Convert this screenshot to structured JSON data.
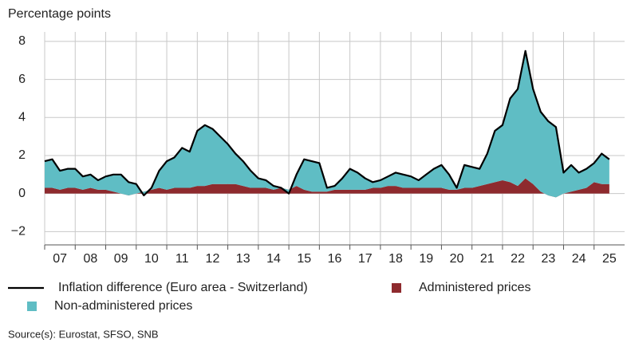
{
  "chart_data": {
    "type": "stacked-area-line",
    "y_label": "Percentage points",
    "source": "Source(s): Eurostat, SFSO, SNB",
    "x": [
      2007.0,
      2007.25,
      2007.5,
      2007.75,
      2008.0,
      2008.25,
      2008.5,
      2008.75,
      2009.0,
      2009.25,
      2009.5,
      2009.75,
      2010.0,
      2010.25,
      2010.5,
      2010.75,
      2011.0,
      2011.25,
      2011.5,
      2011.75,
      2012.0,
      2012.25,
      2012.5,
      2012.75,
      2013.0,
      2013.25,
      2013.5,
      2013.75,
      2014.0,
      2014.25,
      2014.5,
      2014.75,
      2015.0,
      2015.25,
      2015.5,
      2015.75,
      2016.0,
      2016.25,
      2016.5,
      2016.75,
      2017.0,
      2017.25,
      2017.5,
      2017.75,
      2018.0,
      2018.25,
      2018.5,
      2018.75,
      2019.0,
      2019.25,
      2019.5,
      2019.75,
      2020.0,
      2020.25,
      2020.5,
      2020.75,
      2021.0,
      2021.25,
      2021.5,
      2021.75,
      2022.0,
      2022.25,
      2022.5,
      2022.75,
      2023.0,
      2023.25,
      2023.5,
      2023.75,
      2024.0,
      2024.25,
      2024.5,
      2024.75,
      2025.0,
      2025.25,
      2025.5
    ],
    "series": [
      {
        "name": "Inflation difference (Euro area - Switzerland)",
        "color": "#000000",
        "kind": "line",
        "values": [
          1.7,
          1.8,
          1.2,
          1.3,
          1.3,
          0.9,
          1.0,
          0.7,
          0.9,
          1.0,
          1.0,
          0.6,
          0.5,
          -0.1,
          0.3,
          1.2,
          1.7,
          1.9,
          2.4,
          2.2,
          3.3,
          3.6,
          3.4,
          3.0,
          2.6,
          2.1,
          1.7,
          1.2,
          0.8,
          0.7,
          0.4,
          0.3,
          0.0,
          1.0,
          1.8,
          1.7,
          1.6,
          0.3,
          0.4,
          0.8,
          1.3,
          1.1,
          0.8,
          0.6,
          0.7,
          0.9,
          1.1,
          1.0,
          0.9,
          0.7,
          1.0,
          1.3,
          1.5,
          1.0,
          0.3,
          1.5,
          1.4,
          1.3,
          2.1,
          3.3,
          3.6,
          5.0,
          5.5,
          7.5,
          5.5,
          4.3,
          3.8,
          3.5,
          1.1,
          1.5,
          1.1,
          1.3,
          1.6,
          2.1,
          1.8
        ]
      },
      {
        "name": "Administered prices",
        "color": "#8e2a2e",
        "kind": "area",
        "values": [
          0.3,
          0.3,
          0.2,
          0.3,
          0.3,
          0.2,
          0.3,
          0.2,
          0.2,
          0.1,
          0.0,
          -0.1,
          0.0,
          0.1,
          0.2,
          0.3,
          0.2,
          0.3,
          0.3,
          0.3,
          0.4,
          0.4,
          0.5,
          0.5,
          0.5,
          0.5,
          0.4,
          0.3,
          0.3,
          0.3,
          0.2,
          0.3,
          0.2,
          0.4,
          0.2,
          0.1,
          0.1,
          0.1,
          0.2,
          0.2,
          0.2,
          0.2,
          0.2,
          0.3,
          0.3,
          0.4,
          0.4,
          0.3,
          0.3,
          0.3,
          0.3,
          0.3,
          0.3,
          0.2,
          0.2,
          0.3,
          0.3,
          0.4,
          0.5,
          0.6,
          0.7,
          0.6,
          0.4,
          0.8,
          0.5,
          0.1,
          -0.1,
          -0.2,
          0.0,
          0.1,
          0.2,
          0.3,
          0.6,
          0.5,
          0.5
        ]
      },
      {
        "name": "Non-administered prices",
        "color": "#5fbdc4",
        "kind": "area",
        "values": [
          1.4,
          1.5,
          1.0,
          1.0,
          1.0,
          0.7,
          0.7,
          0.5,
          0.7,
          0.9,
          1.0,
          0.7,
          0.5,
          -0.2,
          0.1,
          0.9,
          1.5,
          1.6,
          2.1,
          1.9,
          2.9,
          3.2,
          2.9,
          2.5,
          2.1,
          1.6,
          1.3,
          0.9,
          0.5,
          0.4,
          0.2,
          0.0,
          -0.2,
          0.6,
          1.6,
          1.6,
          1.5,
          0.2,
          0.2,
          0.6,
          1.1,
          0.9,
          0.6,
          0.3,
          0.4,
          0.5,
          0.7,
          0.7,
          0.6,
          0.4,
          0.7,
          1.0,
          1.2,
          0.8,
          0.1,
          1.2,
          1.1,
          0.9,
          1.6,
          2.7,
          2.9,
          4.4,
          5.1,
          6.7,
          5.0,
          4.2,
          3.9,
          3.7,
          1.1,
          1.4,
          0.9,
          1.0,
          1.0,
          1.6,
          1.3
        ]
      }
    ],
    "xlim": [
      2007,
      2026
    ],
    "xticks": [
      {
        "value": 2007.5,
        "label": "07"
      },
      {
        "value": 2008.5,
        "label": "08"
      },
      {
        "value": 2009.5,
        "label": "09"
      },
      {
        "value": 2010.5,
        "label": "10"
      },
      {
        "value": 2011.5,
        "label": "11"
      },
      {
        "value": 2012.5,
        "label": "12"
      },
      {
        "value": 2013.5,
        "label": "13"
      },
      {
        "value": 2014.5,
        "label": "14"
      },
      {
        "value": 2015.5,
        "label": "15"
      },
      {
        "value": 2016.5,
        "label": "16"
      },
      {
        "value": 2017.5,
        "label": "17"
      },
      {
        "value": 2018.5,
        "label": "18"
      },
      {
        "value": 2019.5,
        "label": "19"
      },
      {
        "value": 2020.5,
        "label": "20"
      },
      {
        "value": 2021.5,
        "label": "21"
      },
      {
        "value": 2022.5,
        "label": "22"
      },
      {
        "value": 2023.5,
        "label": "23"
      },
      {
        "value": 2024.5,
        "label": "24"
      },
      {
        "value": 2025.5,
        "label": "25"
      }
    ],
    "ylim": [
      -2.7,
      8.5
    ],
    "yticks": [
      {
        "value": -2,
        "label": "−2"
      },
      0,
      2,
      4,
      6,
      8
    ],
    "grid": true
  }
}
